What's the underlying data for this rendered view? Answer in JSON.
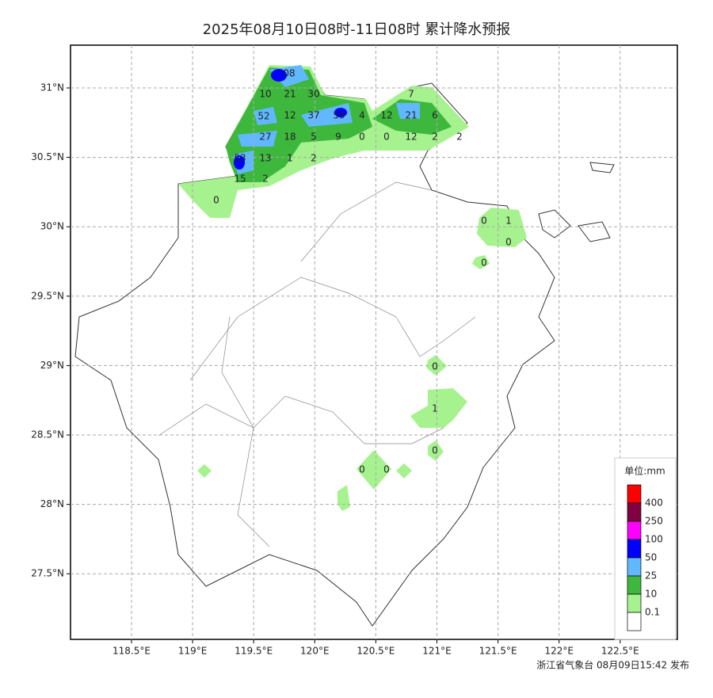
{
  "title": "2025年08月10日08时-11日08时 累计降水预报",
  "lat_ticks": [
    {
      "value": 31,
      "label": "31°N"
    },
    {
      "value": 30.5,
      "label": "30.5°N"
    },
    {
      "value": 30,
      "label": "30°N"
    },
    {
      "value": 29.5,
      "label": "29.5°N"
    },
    {
      "value": 29,
      "label": "29°N"
    },
    {
      "value": 28.5,
      "label": "28.5°N"
    },
    {
      "value": 28,
      "label": "28°N"
    },
    {
      "value": 27.5,
      "label": "27.5°N"
    }
  ],
  "lon_ticks": [
    {
      "value": 118.5,
      "label": "118.5°E"
    },
    {
      "value": 119,
      "label": "119°E"
    },
    {
      "value": 119.5,
      "label": "119.5°E"
    },
    {
      "value": 120,
      "label": "120°E"
    },
    {
      "value": 120.5,
      "label": "120.5°E"
    },
    {
      "value": 121,
      "label": "121°E"
    },
    {
      "value": 121.5,
      "label": "121.5°E"
    },
    {
      "value": 122,
      "label": "122°E"
    },
    {
      "value": 122.5,
      "label": "122.5°E"
    }
  ],
  "map_labels": [
    "08",
    "10",
    "21",
    "30",
    "7",
    "52",
    "12",
    "37",
    "59",
    "4",
    "12",
    "21",
    "6",
    "27",
    "18",
    "5",
    "9",
    "0",
    "0",
    "12",
    "2",
    "2",
    "53",
    "13",
    "1",
    "2",
    "15",
    "2",
    "0",
    "0",
    "1",
    "0",
    "0",
    "0",
    "1",
    "0",
    "0",
    "0"
  ],
  "legend": {
    "title": "单位:mm",
    "colors": [
      "#ff0000",
      "#800040",
      "#ff00ff",
      "#0000ff",
      "#61b8ff",
      "#3db83d",
      "#a6f28f",
      "#ffffff"
    ],
    "labels": [
      "400",
      "250",
      "100",
      "50",
      "25",
      "10",
      "0.1"
    ]
  },
  "footer": "浙江省气象台 08月09日15:42 发布"
}
